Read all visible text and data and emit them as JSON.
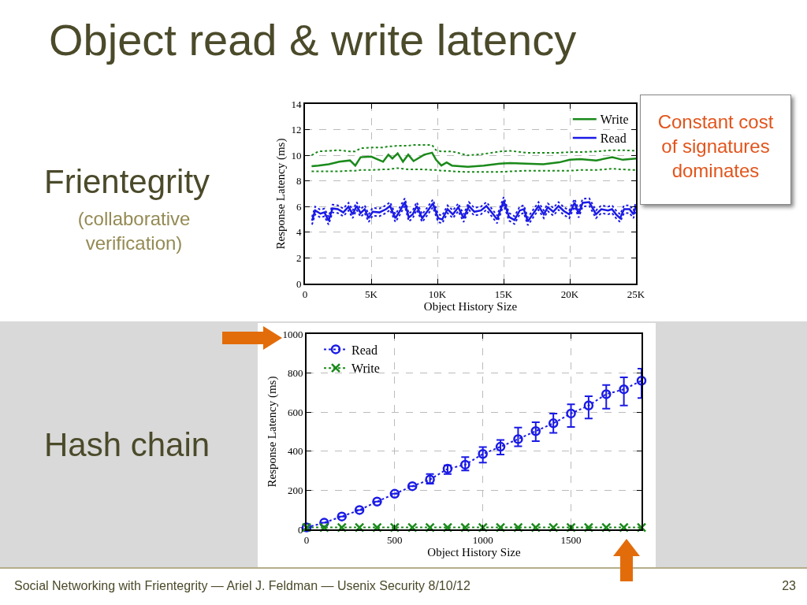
{
  "chart_data": [
    {
      "type": "line",
      "title": "Object read & write latency",
      "xlabel": "Object History Size",
      "ylabel": "Response Latency (ms)",
      "xlim": [
        0,
        25000
      ],
      "xticks": [
        0,
        {
          "value": 5000,
          "label": "5K"
        },
        {
          "value": 10000,
          "label": "10K"
        },
        {
          "value": 15000,
          "label": "15K"
        },
        {
          "value": 20000,
          "label": "20K"
        },
        {
          "value": 25000,
          "label": "25K"
        }
      ],
      "ylim": [
        0,
        14
      ],
      "yticks": [
        0,
        2,
        4,
        6,
        8,
        10,
        12,
        14
      ],
      "grid": true,
      "legend": "top right",
      "line_style": "solid",
      "marker": "none",
      "annotations": [
        "Frientegrity",
        "(collaborative verification)",
        "Constant cost of signatures dominates"
      ],
      "series": [
        {
          "name": "Write",
          "color": "#1a8a1a",
          "x": [
            500,
            1000,
            1800,
            2600,
            3400,
            3800,
            4200,
            5000,
            5900,
            6300,
            6600,
            7000,
            7400,
            7800,
            8200,
            9000,
            9600,
            9900,
            10300,
            10700,
            11100,
            12300,
            13500,
            14700,
            15500,
            16700,
            18000,
            19200,
            20000,
            20800,
            22000,
            23200,
            24000,
            25000
          ],
          "values": [
            9.15,
            9.2,
            9.3,
            9.5,
            9.6,
            9.2,
            9.85,
            9.9,
            9.5,
            10.05,
            9.75,
            10.15,
            9.5,
            10.05,
            9.55,
            10.05,
            10.2,
            9.65,
            9.2,
            9.45,
            9.2,
            9.1,
            9.2,
            9.35,
            9.4,
            9.35,
            9.3,
            9.45,
            9.65,
            9.7,
            9.6,
            9.85,
            9.65,
            9.75
          ]
        },
        {
          "name": "Read",
          "color": "#1a1ae6",
          "x": [
            530,
            770,
            1170,
            1470,
            1780,
            2080,
            2480,
            2890,
            3290,
            3600,
            3900,
            4200,
            4510,
            4810,
            5110,
            5620,
            6120,
            6420,
            6830,
            7130,
            7540,
            7840,
            8140,
            8440,
            8850,
            9250,
            9660,
            10060,
            10360,
            10770,
            11170,
            11580,
            11980,
            12380,
            12790,
            13290,
            13700,
            14100,
            14510,
            15010,
            15410,
            15820,
            16220,
            16530,
            16830,
            17130,
            17640,
            18040,
            18340,
            18750,
            19150,
            19560,
            19960,
            20360,
            20670,
            20970,
            21470,
            21980,
            22380,
            22890,
            23190,
            23490,
            23800,
            24100,
            24510,
            24810,
            25000
          ],
          "values": [
            4.9,
            5.7,
            5.45,
            5.55,
            4.9,
            5.85,
            5.8,
            5.55,
            6.0,
            5.4,
            6.05,
            5.5,
            5.8,
            5.1,
            5.6,
            5.55,
            5.8,
            6.05,
            5.1,
            5.6,
            6.35,
            5.15,
            5.4,
            6.05,
            5.1,
            5.65,
            6.25,
            5.1,
            5.0,
            5.8,
            5.4,
            5.95,
            5.1,
            6.05,
            5.6,
            5.7,
            6.05,
            5.55,
            5.0,
            6.45,
            5.2,
            4.95,
            5.7,
            5.8,
            4.85,
            5.3,
            6.05,
            5.4,
            5.95,
            5.6,
            6.05,
            5.65,
            5.4,
            6.3,
            5.45,
            6.3,
            6.35,
            5.4,
            5.8,
            5.7,
            5.8,
            5.4,
            5.1,
            5.8,
            5.8,
            5.4,
            6.05
          ]
        },
        {
          "color": "#1a8a1a",
          "line_style": "dotted",
          "x": [
            500,
            1000,
            1800,
            2600,
            3400,
            3800,
            4200,
            5000,
            5900,
            6300,
            6600,
            7000,
            7400,
            7800,
            8200,
            9000,
            9600,
            9900,
            10300,
            10700,
            11100,
            12300,
            13500,
            14700,
            15500,
            16700,
            18000,
            19200,
            20000,
            20800,
            22000,
            23200,
            24000,
            25000
          ],
          "values": [
            8.75,
            8.75,
            8.75,
            8.75,
            8.8,
            8.8,
            8.85,
            8.85,
            8.9,
            8.9,
            8.95,
            9.0,
            8.95,
            8.9,
            8.9,
            8.9,
            8.85,
            8.85,
            8.8,
            8.8,
            8.75,
            8.7,
            8.7,
            8.7,
            8.75,
            8.8,
            8.8,
            8.8,
            8.8,
            8.85,
            8.85,
            8.95,
            8.9,
            8.85
          ]
        },
        {
          "color": "#1a8a1a",
          "line_style": "dotted",
          "x": [
            500,
            1000,
            1800,
            2600,
            3400,
            3800,
            4200,
            5000,
            5900,
            6300,
            6600,
            7000,
            7400,
            7800,
            8200,
            9000,
            9600,
            9900,
            10300,
            10700,
            11100,
            12300,
            13500,
            14700,
            15500,
            16700,
            18000,
            19200,
            20000,
            20800,
            22000,
            23200,
            24000,
            25000
          ],
          "values": [
            10.0,
            10.3,
            10.35,
            10.4,
            10.3,
            10.3,
            10.55,
            10.6,
            10.6,
            10.7,
            10.7,
            10.75,
            10.75,
            10.75,
            10.8,
            10.8,
            10.8,
            10.4,
            10.3,
            10.3,
            10.3,
            10.0,
            10.1,
            10.3,
            10.35,
            10.2,
            10.2,
            10.2,
            10.25,
            10.25,
            10.3,
            10.4,
            10.4,
            10.35
          ]
        },
        {
          "color": "#1a1ae6",
          "line_style": "dotted",
          "x": [
            530,
            770,
            1170,
            1470,
            1780,
            2080,
            2480,
            2890,
            3290,
            3600,
            3900,
            4200,
            4510,
            4810,
            5110,
            5620,
            6120,
            6420,
            6830,
            7130,
            7540,
            7840,
            8140,
            8440,
            8850,
            9250,
            9660,
            10060,
            10360,
            10770,
            11170,
            11580,
            11980,
            12380,
            12790,
            13290,
            13700,
            14100,
            14510,
            15010,
            15410,
            15820,
            16220,
            16530,
            16830,
            17130,
            17640,
            18040,
            18340,
            18750,
            19150,
            19560,
            19960,
            20360,
            20670,
            20970,
            21470,
            21980,
            22380,
            22890,
            23190,
            23490,
            23800,
            24100,
            24510,
            24810,
            25000
          ],
          "values": [
            4.6,
            5.4,
            5.15,
            5.25,
            4.6,
            5.55,
            5.5,
            5.25,
            5.7,
            5.1,
            5.75,
            5.2,
            5.5,
            4.8,
            5.3,
            5.25,
            5.5,
            5.75,
            4.8,
            5.3,
            6.05,
            4.85,
            5.1,
            5.75,
            4.8,
            5.35,
            5.95,
            4.8,
            4.7,
            5.5,
            5.1,
            5.65,
            4.8,
            5.75,
            5.3,
            5.4,
            5.75,
            5.25,
            4.7,
            6.15,
            4.9,
            4.65,
            5.4,
            5.5,
            4.55,
            5.0,
            5.75,
            5.1,
            5.65,
            5.3,
            5.75,
            5.35,
            5.1,
            6.0,
            5.15,
            6.0,
            6.05,
            5.1,
            5.5,
            5.4,
            5.5,
            5.1,
            4.8,
            5.5,
            5.5,
            5.1,
            5.75
          ]
        },
        {
          "color": "#1a1ae6",
          "line_style": "dotted",
          "x": [
            530,
            770,
            1170,
            1470,
            1780,
            2080,
            2480,
            2890,
            3290,
            3600,
            3900,
            4200,
            4510,
            4810,
            5110,
            5620,
            6120,
            6420,
            6830,
            7130,
            7540,
            7840,
            8140,
            8440,
            8850,
            9250,
            9660,
            10060,
            10360,
            10770,
            11170,
            11580,
            11980,
            12380,
            12790,
            13290,
            13700,
            14100,
            14510,
            15010,
            15410,
            15820,
            16220,
            16530,
            16830,
            17130,
            17640,
            18040,
            18340,
            18750,
            19150,
            19560,
            19960,
            20360,
            20670,
            20970,
            21470,
            21980,
            22380,
            22890,
            23190,
            23490,
            23800,
            24100,
            24510,
            24810,
            25000
          ],
          "values": [
            5.2,
            6.0,
            5.75,
            5.85,
            5.2,
            6.15,
            6.1,
            5.85,
            6.3,
            5.7,
            6.35,
            5.8,
            6.1,
            5.4,
            5.9,
            5.85,
            6.1,
            6.35,
            5.4,
            5.9,
            6.65,
            5.45,
            5.7,
            6.35,
            5.4,
            5.95,
            6.55,
            5.4,
            5.3,
            6.1,
            5.7,
            6.25,
            5.4,
            6.35,
            5.9,
            6.0,
            6.35,
            5.85,
            5.3,
            6.75,
            5.5,
            5.25,
            6.0,
            6.1,
            5.15,
            5.6,
            6.35,
            5.7,
            6.25,
            5.9,
            6.35,
            5.95,
            5.7,
            6.6,
            5.75,
            6.6,
            6.65,
            5.7,
            6.1,
            6.0,
            6.1,
            5.7,
            5.4,
            6.1,
            6.1,
            5.7,
            6.35
          ]
        }
      ]
    },
    {
      "type": "line",
      "xlabel": "Object History Size",
      "ylabel": "Response Latency (ms)",
      "x": [
        0,
        100,
        200,
        300,
        400,
        500,
        600,
        700,
        800,
        900,
        1000,
        1100,
        1200,
        1300,
        1400,
        1500,
        1600,
        1700,
        1800,
        1900
      ],
      "xlim": [
        0,
        1900
      ],
      "xticks": [
        0,
        500,
        1000,
        1500
      ],
      "ylim": [
        0,
        1000
      ],
      "yticks": [
        0,
        200,
        400,
        600,
        800,
        1000
      ],
      "grid": true,
      "legend": "top left",
      "line_style": "dotted",
      "annotations": [
        "Hash chain",
        "Social Networking with Frientegrity — Ariel J. Feldman — Usenix Security 8/10/12",
        "23"
      ],
      "series": [
        {
          "name": "Read",
          "color": "#1a1ae6",
          "marker": "circle",
          "values": [
            10,
            34,
            66,
            99,
            142,
            182,
            221,
            255,
            310,
            331,
            386,
            423,
            462,
            503,
            543,
            593,
            634,
            692,
            717,
            761
          ],
          "errors": [
            null,
            null,
            null,
            null,
            null,
            null,
            null,
            [
              234,
              283
            ],
            [
              283,
              328
            ],
            [
              301,
              370
            ],
            [
              342,
              421
            ],
            [
              383,
              458
            ],
            [
              425,
              521
            ],
            [
              452,
              548
            ],
            [
              494,
              593
            ],
            [
              524,
              640
            ],
            [
              568,
              681
            ],
            [
              618,
              739
            ],
            [
              634,
              778
            ],
            [
              672,
              823
            ]
          ]
        },
        {
          "name": "Write",
          "color": "#1a8a1a",
          "marker": "cross",
          "values": [
            10,
            10,
            10,
            10,
            10,
            10,
            10,
            10,
            10,
            10,
            10,
            10,
            10,
            10,
            10,
            10,
            10,
            10,
            10,
            10
          ]
        }
      ]
    }
  ]
}
